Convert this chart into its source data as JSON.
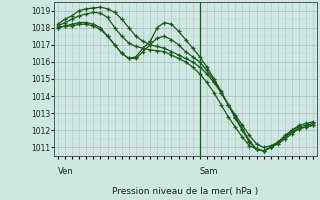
{
  "background_color": "#cce8e0",
  "grid_color_major": "#aaaacc",
  "grid_color_minor": "#ddddee",
  "line_color": "#1a5c1a",
  "title": "Pression niveau de la mer( hPa )",
  "xlabel_ven": "Ven",
  "xlabel_sam": "Sam",
  "ylim": [
    1010.5,
    1019.5
  ],
  "yticks": [
    1011,
    1012,
    1013,
    1014,
    1015,
    1016,
    1017,
    1018,
    1019
  ],
  "n_points": 37,
  "vline_x": 20,
  "series": [
    [
      1018.2,
      1018.5,
      1018.7,
      1019.0,
      1019.1,
      1019.15,
      1019.2,
      1019.1,
      1018.9,
      1018.5,
      1018.0,
      1017.5,
      1017.2,
      1017.0,
      1016.9,
      1016.8,
      1016.6,
      1016.4,
      1016.2,
      1016.0,
      1015.7,
      1015.3,
      1014.8,
      1014.2,
      1013.5,
      1012.9,
      1012.3,
      1011.7,
      1011.2,
      1011.0,
      1011.1,
      1011.3,
      1011.6,
      1012.0,
      1012.3,
      1012.4,
      1012.5
    ],
    [
      1018.1,
      1018.3,
      1018.5,
      1018.7,
      1018.8,
      1018.9,
      1018.85,
      1018.6,
      1018.0,
      1017.5,
      1017.1,
      1016.9,
      1016.8,
      1016.7,
      1016.65,
      1016.6,
      1016.4,
      1016.2,
      1016.0,
      1015.7,
      1015.3,
      1014.8,
      1014.2,
      1013.5,
      1012.8,
      1012.2,
      1011.6,
      1011.1,
      1010.9,
      1010.8,
      1011.0,
      1011.2,
      1011.5,
      1011.8,
      1012.1,
      1012.2,
      1012.3
    ],
    [
      1018.0,
      1018.1,
      1018.2,
      1018.3,
      1018.3,
      1018.2,
      1018.0,
      1017.5,
      1017.0,
      1016.5,
      1016.2,
      1016.3,
      1016.8,
      1017.2,
      1018.0,
      1018.3,
      1018.2,
      1017.8,
      1017.3,
      1016.8,
      1016.3,
      1015.7,
      1015.0,
      1014.3,
      1013.5,
      1012.7,
      1012.0,
      1011.3,
      1010.9,
      1010.8,
      1011.0,
      1011.3,
      1011.7,
      1012.0,
      1012.2,
      1012.3,
      1012.4
    ],
    [
      1018.0,
      1018.1,
      1018.1,
      1018.2,
      1018.2,
      1018.1,
      1017.9,
      1017.5,
      1017.0,
      1016.5,
      1016.2,
      1016.2,
      1016.6,
      1017.0,
      1017.4,
      1017.5,
      1017.3,
      1017.0,
      1016.6,
      1016.3,
      1016.0,
      1015.5,
      1014.9,
      1014.2,
      1013.5,
      1012.8,
      1012.1,
      1011.4,
      1010.9,
      1010.8,
      1011.0,
      1011.3,
      1011.6,
      1011.9,
      1012.1,
      1012.2,
      1012.3
    ]
  ]
}
